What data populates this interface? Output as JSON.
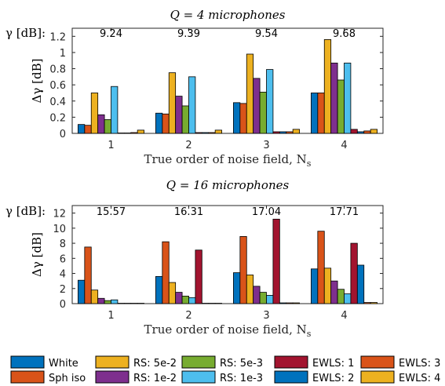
{
  "chart_data": [
    {
      "type": "bar",
      "title": "Q = 4 microphones",
      "gamma_label": "γ [dB]:",
      "gamma_values": [
        "9.24",
        "9.39",
        "9.54",
        "9.68"
      ],
      "xlabel": "True order of noise field, N",
      "xlabel_sub": "s",
      "ylabel": "Δγ [dB]",
      "categories": [
        "1",
        "2",
        "3",
        "4"
      ],
      "ylim": [
        0,
        1.3
      ],
      "yticks": [
        "0",
        "0.2",
        "0.4",
        "0.6",
        "0.8",
        "1",
        "1.2"
      ],
      "series": [
        {
          "name": "White",
          "values": [
            0.11,
            0.25,
            0.38,
            0.5
          ]
        },
        {
          "name": "Sph iso",
          "values": [
            0.1,
            0.24,
            0.37,
            0.5
          ]
        },
        {
          "name": "RS: 5e-2",
          "values": [
            0.5,
            0.75,
            0.98,
            1.16
          ]
        },
        {
          "name": "RS: 1e-2",
          "values": [
            0.23,
            0.46,
            0.68,
            0.87
          ]
        },
        {
          "name": "RS: 5e-3",
          "values": [
            0.17,
            0.34,
            0.51,
            0.66
          ]
        },
        {
          "name": "RS: 1e-3",
          "values": [
            0.58,
            0.7,
            0.79,
            0.87
          ]
        },
        {
          "name": "EWLS: 1",
          "values": [
            0.005,
            0.01,
            0.02,
            0.05
          ]
        },
        {
          "name": "EWLS: 2",
          "values": [
            0.005,
            0.01,
            0.02,
            0.02
          ]
        },
        {
          "name": "EWLS: 3",
          "values": [
            0.01,
            0.01,
            0.02,
            0.03
          ]
        },
        {
          "name": "EWLS: 4",
          "values": [
            0.04,
            0.04,
            0.05,
            0.05
          ]
        }
      ]
    },
    {
      "type": "bar",
      "title": "Q = 16 microphones",
      "gamma_label": "γ [dB]:",
      "gamma_values": [
        "15.57",
        "16.31",
        "17.04",
        "17.71"
      ],
      "xlabel": "True order of noise field, N",
      "xlabel_sub": "s",
      "ylabel": "Δγ [dB]",
      "categories": [
        "1",
        "2",
        "3",
        "4"
      ],
      "ylim": [
        0,
        13
      ],
      "yticks": [
        "0",
        "2",
        "4",
        "6",
        "8",
        "10",
        "12"
      ],
      "series": [
        {
          "name": "White",
          "values": [
            3.1,
            3.6,
            4.1,
            4.6
          ]
        },
        {
          "name": "Sph iso",
          "values": [
            7.5,
            8.2,
            8.9,
            9.6
          ]
        },
        {
          "name": "RS: 5e-2",
          "values": [
            1.8,
            2.8,
            3.8,
            4.7
          ]
        },
        {
          "name": "RS: 1e-2",
          "values": [
            0.7,
            1.5,
            2.3,
            3.0
          ]
        },
        {
          "name": "RS: 5e-3",
          "values": [
            0.4,
            1.0,
            1.5,
            1.9
          ]
        },
        {
          "name": "RS: 1e-3",
          "values": [
            0.5,
            0.8,
            1.1,
            1.3
          ]
        },
        {
          "name": "EWLS: 1",
          "values": [
            0.05,
            7.1,
            11.2,
            8.0
          ]
        },
        {
          "name": "EWLS: 2",
          "values": [
            0.05,
            0.05,
            0.1,
            5.1
          ]
        },
        {
          "name": "EWLS: 3",
          "values": [
            0.05,
            0.05,
            0.1,
            0.15
          ]
        },
        {
          "name": "EWLS: 4",
          "values": [
            0.05,
            0.05,
            0.1,
            0.15
          ]
        }
      ]
    }
  ],
  "legend": [
    {
      "label": "White",
      "color": "#0072BD"
    },
    {
      "label": "RS: 5e-2",
      "color": "#EDB120"
    },
    {
      "label": "RS: 5e-3",
      "color": "#77AC30"
    },
    {
      "label": "EWLS: 1",
      "color": "#A2142F"
    },
    {
      "label": "EWLS: 3",
      "color": "#D95319"
    },
    {
      "label": "Sph iso",
      "color": "#D95319"
    },
    {
      "label": "RS: 1e-2",
      "color": "#7E2F8E"
    },
    {
      "label": "RS: 1e-3",
      "color": "#4DBEEE"
    },
    {
      "label": "EWLS: 2",
      "color": "#0072BD"
    },
    {
      "label": "EWLS: 4",
      "color": "#EDB120"
    }
  ],
  "series_colors": [
    "#0072BD",
    "#D95319",
    "#EDB120",
    "#7E2F8E",
    "#77AC30",
    "#4DBEEE",
    "#A2142F",
    "#0072BD",
    "#D95319",
    "#EDB120"
  ]
}
